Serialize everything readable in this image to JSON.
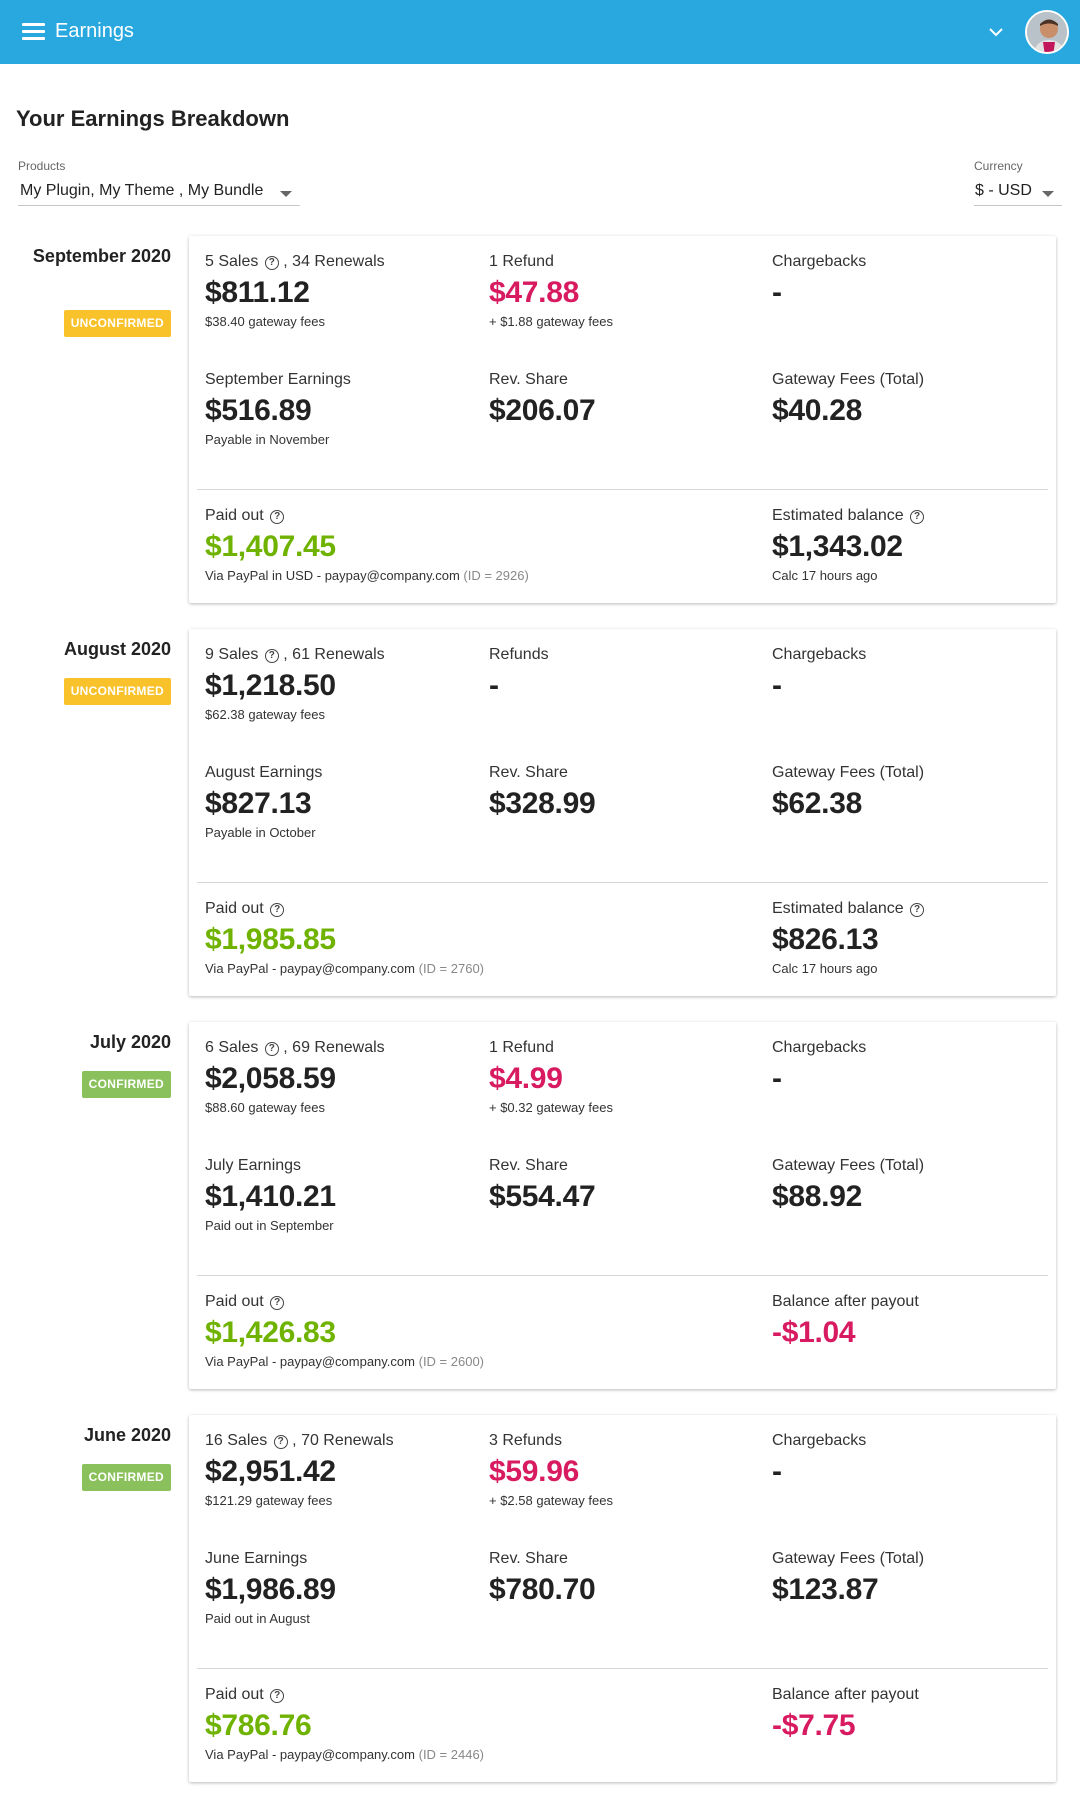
{
  "appbar": {
    "title": "Earnings",
    "menu_icon": "hamburger-menu-icon",
    "chevron_icon": "chevron-down-icon",
    "color": "#29a8e0"
  },
  "page": {
    "title": "Your Earnings Breakdown"
  },
  "filters": {
    "products_label": "Products",
    "products_value": "My Plugin, My Theme , My Bundle",
    "currency_label": "Currency",
    "currency_value": "$ - USD"
  },
  "colors": {
    "negative": "#d81b60",
    "positive": "#6fb300",
    "unconfirmed": "#f9c22b",
    "confirmed": "#8bc15d"
  },
  "months": [
    {
      "label": "September 2020",
      "status": "UNCONFIRMED",
      "sales_count": "5 Sales",
      "renewals": ", 34 Renewals",
      "sales_value": "$811.12",
      "sales_fees": "$38.40 gateway fees",
      "refunds_label": "1 Refund",
      "refunds_value": "$47.88",
      "refunds_fees": "+ $1.88 gateway fees",
      "chargebacks_label": "Chargebacks",
      "chargebacks_value": "-",
      "earnings_label": "September Earnings",
      "earnings_value": "$516.89",
      "earnings_note": "Payable in November",
      "revshare_label": "Rev. Share",
      "revshare_value": "$206.07",
      "gateway_label": "Gateway Fees (Total)",
      "gateway_value": "$40.28",
      "paidout_label": "Paid out",
      "paidout_value": "$1,407.45",
      "paidout_via": "Via PayPal in USD - paypay@company.com",
      "paidout_id": "(ID = 2926)",
      "balance_label": "Estimated balance",
      "balance_value": "$1,343.02",
      "balance_note": "Calc 17 hours ago"
    },
    {
      "label": "August 2020",
      "status": "UNCONFIRMED",
      "sales_count": "9 Sales",
      "renewals": ", 61 Renewals",
      "sales_value": "$1,218.50",
      "sales_fees": "$62.38 gateway fees",
      "refunds_label": "Refunds",
      "refunds_value": "-",
      "refunds_fees": "",
      "chargebacks_label": "Chargebacks",
      "chargebacks_value": "-",
      "earnings_label": "August Earnings",
      "earnings_value": "$827.13",
      "earnings_note": "Payable in October",
      "revshare_label": "Rev. Share",
      "revshare_value": "$328.99",
      "gateway_label": "Gateway Fees (Total)",
      "gateway_value": "$62.38",
      "paidout_label": "Paid out",
      "paidout_value": "$1,985.85",
      "paidout_via": "Via PayPal - paypay@company.com",
      "paidout_id": "(ID = 2760)",
      "balance_label": "Estimated balance",
      "balance_value": "$826.13",
      "balance_note": "Calc 17 hours ago"
    },
    {
      "label": "July 2020",
      "status": "CONFIRMED",
      "sales_count": "6 Sales",
      "renewals": ", 69 Renewals",
      "sales_value": "$2,058.59",
      "sales_fees": "$88.60 gateway fees",
      "refunds_label": "1 Refund",
      "refunds_value": "$4.99",
      "refunds_fees": "+ $0.32 gateway fees",
      "chargebacks_label": "Chargebacks",
      "chargebacks_value": "-",
      "earnings_label": "July Earnings",
      "earnings_value": "$1,410.21",
      "earnings_note": "Paid out in September",
      "revshare_label": "Rev. Share",
      "revshare_value": "$554.47",
      "gateway_label": "Gateway Fees (Total)",
      "gateway_value": "$88.92",
      "paidout_label": "Paid out",
      "paidout_value": "$1,426.83",
      "paidout_via": "Via PayPal - paypay@company.com",
      "paidout_id": "(ID = 2600)",
      "balance_label": "Balance after payout",
      "balance_value": "-$1.04",
      "balance_note": ""
    },
    {
      "label": "June 2020",
      "status": "CONFIRMED",
      "sales_count": "16 Sales",
      "renewals": ", 70 Renewals",
      "sales_value": "$2,951.42",
      "sales_fees": "$121.29 gateway fees",
      "refunds_label": "3 Refunds",
      "refunds_value": "$59.96",
      "refunds_fees": "+ $2.58 gateway fees",
      "chargebacks_label": "Chargebacks",
      "chargebacks_value": "-",
      "earnings_label": "June Earnings",
      "earnings_value": "$1,986.89",
      "earnings_note": "Paid out in August",
      "revshare_label": "Rev. Share",
      "revshare_value": "$780.70",
      "gateway_label": "Gateway Fees (Total)",
      "gateway_value": "$123.87",
      "paidout_label": "Paid out",
      "paidout_value": "$786.76",
      "paidout_via": "Via PayPal - paypay@company.com",
      "paidout_id": "(ID = 2446)",
      "balance_label": "Balance after payout",
      "balance_value": "-$7.75",
      "balance_note": ""
    }
  ]
}
